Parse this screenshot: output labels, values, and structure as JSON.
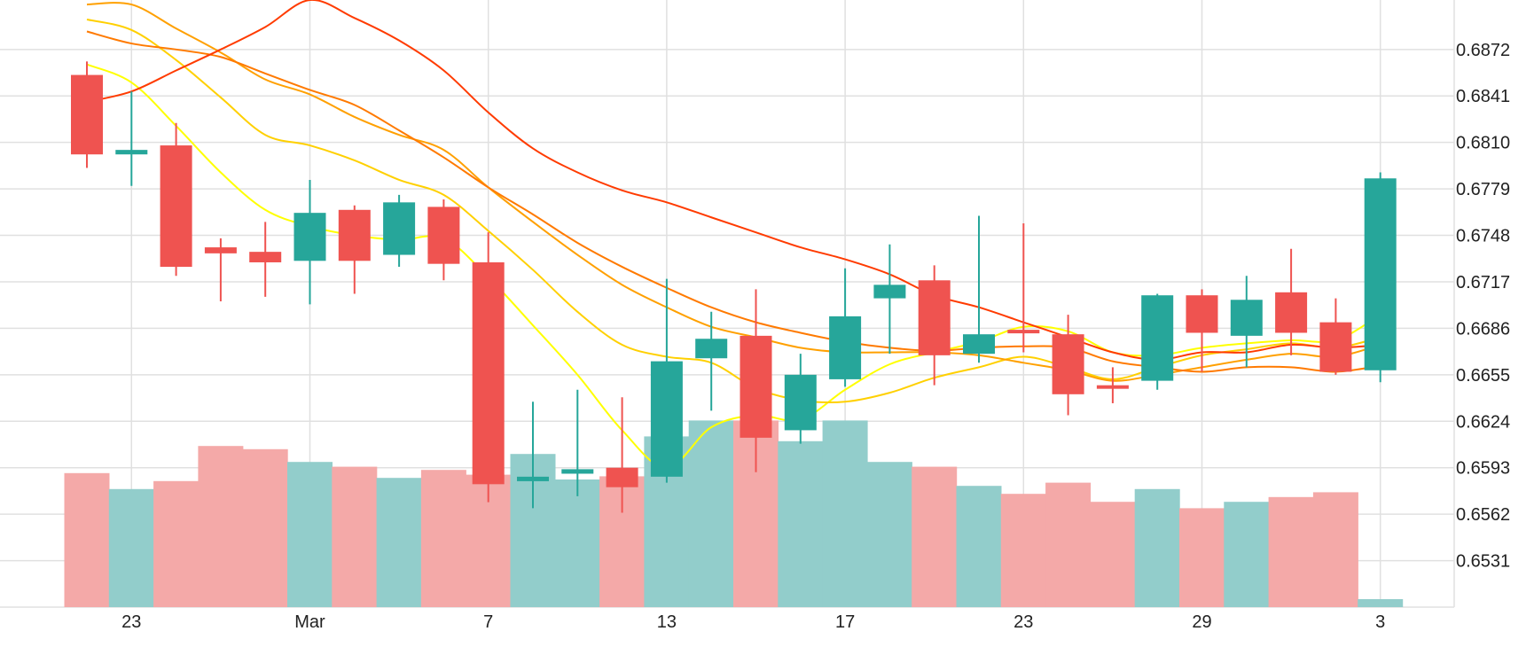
{
  "chart_data": {
    "type": "candlestick",
    "x_tick_labels": [
      {
        "label": "23",
        "index": 1
      },
      {
        "label": "Mar",
        "index": 5
      },
      {
        "label": "7",
        "index": 9
      },
      {
        "label": "13",
        "index": 13
      },
      {
        "label": "17",
        "index": 17
      },
      {
        "label": "23",
        "index": 21
      },
      {
        "label": "29",
        "index": 25
      },
      {
        "label": "3",
        "index": 29
      }
    ],
    "y_tick_labels": [
      "0.6872",
      "0.6841",
      "0.6810",
      "0.6779",
      "0.6748",
      "0.6717",
      "0.6686",
      "0.6655",
      "0.6624",
      "0.6593",
      "0.6562",
      "0.6531"
    ],
    "y_ticks": [
      0.6872,
      0.6841,
      0.681,
      0.6779,
      0.6748,
      0.6717,
      0.6686,
      0.6655,
      0.6624,
      0.6593,
      0.6562,
      0.6531
    ],
    "ylim": [
      0.65,
      0.6905
    ],
    "volume_max": 100,
    "candles": [
      {
        "open": 0.6855,
        "high": 0.6864,
        "low": 0.6793,
        "close": 0.6802
      },
      {
        "open": 0.6802,
        "high": 0.6844,
        "low": 0.6781,
        "close": 0.6805
      },
      {
        "open": 0.6808,
        "high": 0.6823,
        "low": 0.6721,
        "close": 0.6727
      },
      {
        "open": 0.674,
        "high": 0.6746,
        "low": 0.6704,
        "close": 0.6736
      },
      {
        "open": 0.6737,
        "high": 0.6757,
        "low": 0.6707,
        "close": 0.673
      },
      {
        "open": 0.6731,
        "high": 0.6785,
        "low": 0.6702,
        "close": 0.6763
      },
      {
        "open": 0.6765,
        "high": 0.6768,
        "low": 0.6709,
        "close": 0.6731
      },
      {
        "open": 0.6735,
        "high": 0.6775,
        "low": 0.6727,
        "close": 0.677
      },
      {
        "open": 0.6767,
        "high": 0.6772,
        "low": 0.6718,
        "close": 0.6729
      },
      {
        "open": 0.673,
        "high": 0.675,
        "low": 0.657,
        "close": 0.6582
      },
      {
        "open": 0.6584,
        "high": 0.6637,
        "low": 0.6566,
        "close": 0.6587
      },
      {
        "open": 0.6589,
        "high": 0.6645,
        "low": 0.6574,
        "close": 0.6592
      },
      {
        "open": 0.6593,
        "high": 0.664,
        "low": 0.6563,
        "close": 0.658
      },
      {
        "open": 0.6587,
        "high": 0.6719,
        "low": 0.6583,
        "close": 0.6664
      },
      {
        "open": 0.6666,
        "high": 0.6697,
        "low": 0.6631,
        "close": 0.6679
      },
      {
        "open": 0.6681,
        "high": 0.6712,
        "low": 0.659,
        "close": 0.6613
      },
      {
        "open": 0.6618,
        "high": 0.6669,
        "low": 0.6609,
        "close": 0.6655
      },
      {
        "open": 0.6652,
        "high": 0.6726,
        "low": 0.6647,
        "close": 0.6694
      },
      {
        "open": 0.6706,
        "high": 0.6742,
        "low": 0.6669,
        "close": 0.6715
      },
      {
        "open": 0.6718,
        "high": 0.6728,
        "low": 0.6648,
        "close": 0.6668
      },
      {
        "open": 0.6669,
        "high": 0.6761,
        "low": 0.6663,
        "close": 0.6682
      },
      {
        "open": 0.6685,
        "high": 0.6756,
        "low": 0.667,
        "close": 0.6684
      },
      {
        "open": 0.6682,
        "high": 0.6695,
        "low": 0.6628,
        "close": 0.6642
      },
      {
        "open": 0.6648,
        "high": 0.666,
        "low": 0.6636,
        "close": 0.6646
      },
      {
        "open": 0.6651,
        "high": 0.6709,
        "low": 0.6645,
        "close": 0.6708
      },
      {
        "open": 0.6708,
        "high": 0.6712,
        "low": 0.6657,
        "close": 0.6683
      },
      {
        "open": 0.6681,
        "high": 0.6721,
        "low": 0.666,
        "close": 0.6705
      },
      {
        "open": 0.671,
        "high": 0.6739,
        "low": 0.6668,
        "close": 0.6683
      },
      {
        "open": 0.669,
        "high": 0.6706,
        "low": 0.6655,
        "close": 0.6657
      },
      {
        "open": 0.6658,
        "high": 0.679,
        "low": 0.665,
        "close": 0.6786
      }
    ],
    "volume": [
      84,
      74,
      79,
      101,
      99,
      91,
      88,
      81,
      86,
      83,
      96,
      80,
      82,
      107,
      117,
      117,
      104,
      117,
      91,
      88,
      76,
      71,
      78,
      66,
      74,
      62,
      66,
      69,
      72,
      5
    ],
    "moving_averages": [
      {
        "color": "#ffff00",
        "values": [
          0.6862,
          0.685,
          0.6821,
          0.679,
          0.6765,
          0.6754,
          0.6748,
          0.6745,
          0.6746,
          0.672,
          0.6688,
          0.6655,
          0.6618,
          0.6593,
          0.662,
          0.6628,
          0.6625,
          0.6645,
          0.6662,
          0.667,
          0.6677,
          0.6687,
          0.6684,
          0.667,
          0.6668,
          0.6673,
          0.6676,
          0.6678,
          0.6678,
          0.6695
        ]
      },
      {
        "color": "#ffd000",
        "values": [
          0.6892,
          0.6885,
          0.6865,
          0.684,
          0.6815,
          0.6808,
          0.6798,
          0.6785,
          0.6775,
          0.6751,
          0.6725,
          0.6697,
          0.6675,
          0.6667,
          0.6663,
          0.6646,
          0.6638,
          0.6637,
          0.6643,
          0.6653,
          0.666,
          0.6667,
          0.666,
          0.6652,
          0.666,
          0.6668,
          0.6672,
          0.6676,
          0.6673,
          0.668
        ]
      },
      {
        "color": "#ffa000",
        "values": [
          0.6902,
          0.6902,
          0.6886,
          0.687,
          0.6852,
          0.6842,
          0.6827,
          0.6815,
          0.6805,
          0.678,
          0.6757,
          0.6735,
          0.6715,
          0.67,
          0.6687,
          0.668,
          0.6673,
          0.667,
          0.667,
          0.667,
          0.6668,
          0.6663,
          0.6658,
          0.6651,
          0.6655,
          0.666,
          0.6665,
          0.6669,
          0.6667,
          0.6675
        ]
      },
      {
        "color": "#ff7a00",
        "values": [
          0.6884,
          0.6876,
          0.6872,
          0.6867,
          0.6856,
          0.6845,
          0.6835,
          0.6818,
          0.68,
          0.678,
          0.6762,
          0.6743,
          0.6727,
          0.6713,
          0.67,
          0.669,
          0.6683,
          0.6677,
          0.6673,
          0.6671,
          0.6673,
          0.6674,
          0.6673,
          0.6664,
          0.666,
          0.6657,
          0.666,
          0.666,
          0.6657,
          0.6661
        ]
      },
      {
        "color": "#ff3b00",
        "values": [
          0.6837,
          0.6844,
          0.6858,
          0.6872,
          0.6887,
          0.6905,
          0.6893,
          0.6878,
          0.6858,
          0.683,
          0.6806,
          0.679,
          0.6778,
          0.677,
          0.676,
          0.675,
          0.674,
          0.6732,
          0.6722,
          0.6708,
          0.67,
          0.669,
          0.668,
          0.667,
          0.6665,
          0.667,
          0.667,
          0.6675,
          0.6673,
          0.6675
        ]
      }
    ],
    "colors": {
      "up": "#26a69a",
      "down": "#ef5350",
      "up_volume": "#92cdcb",
      "down_volume": "#f4a9a8",
      "grid": "#e0e0e0",
      "axis_text": "#222222"
    }
  }
}
